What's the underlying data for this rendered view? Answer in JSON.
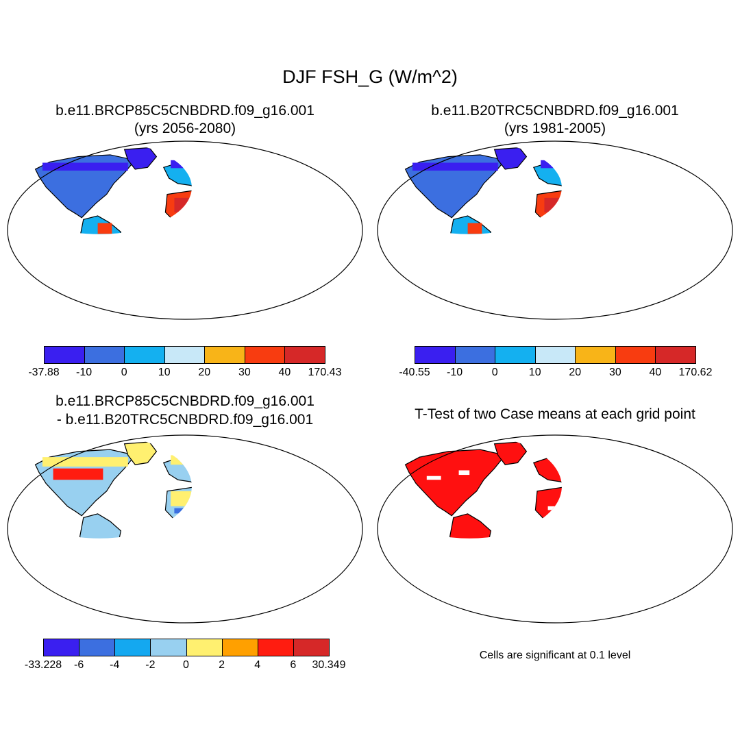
{
  "figure_title": "DJF FSH_G (W/m^2)",
  "panels": {
    "future": {
      "title_line1": "b.e11.BRCP85C5CNBDRD.f09_g16.001",
      "title_line2": "(yrs 2056-2080)"
    },
    "historical": {
      "title_line1": "b.e11.B20TRC5CNBDRD.f09_g16.001",
      "title_line2": "(yrs 1981-2005)"
    },
    "difference": {
      "title_line1": "b.e11.BRCP85C5CNBDRD.f09_g16.001",
      "title_line2": "- b.e11.B20TRC5CNBDRD.f09_g16.001"
    },
    "ttest": {
      "title_line1": "T-Test of two Case means at each grid point",
      "note": "Cells are significant at 0.1 level"
    }
  },
  "colorbars": {
    "future": {
      "labels": [
        "-37.88",
        "-10",
        "0",
        "10",
        "20",
        "30",
        "40",
        "170.43"
      ],
      "colors": [
        "#3a1ff0",
        "#3c6fe0",
        "#14b0f0",
        "#c8e8f8",
        "#f8b418",
        "#f83c10",
        "#d62828"
      ]
    },
    "historical": {
      "labels": [
        "-40.55",
        "-10",
        "0",
        "10",
        "20",
        "30",
        "40",
        "170.62"
      ],
      "colors": [
        "#3a1ff0",
        "#3c6fe0",
        "#14b0f0",
        "#c8e8f8",
        "#f8b418",
        "#f83c10",
        "#d62828"
      ]
    },
    "difference": {
      "labels": [
        "-33.228",
        "-6",
        "-4",
        "-2",
        "0",
        "2",
        "4",
        "6",
        "30.349"
      ],
      "colors": [
        "#3a1ff0",
        "#3c6fe0",
        "#14a8f0",
        "#98d0f0",
        "#fff070",
        "#ffa000",
        "#ff1c10",
        "#d62828"
      ]
    }
  },
  "map_colors": {
    "land_cold": "#3a1ff0",
    "land_cool": "#3c6fe0",
    "land_mid": "#14b0f0",
    "land_pale": "#c8e8f8",
    "land_warm": "#f8b418",
    "land_hot": "#f83c10",
    "land_max": "#d62828",
    "significant": "#ff1010"
  }
}
